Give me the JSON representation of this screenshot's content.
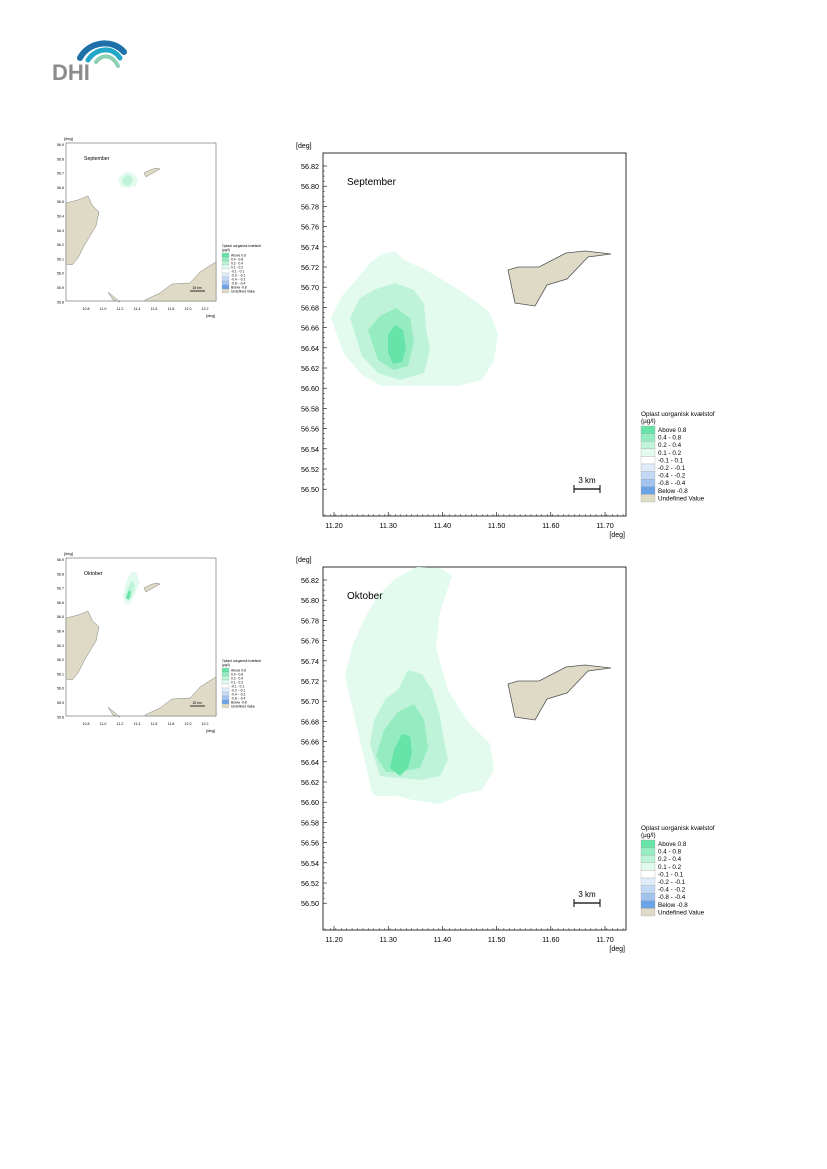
{
  "header": {
    "logo_text": "DHI"
  },
  "colors": {
    "land": "#dedac6",
    "land_stroke": "#555555",
    "frame": "#000000",
    "above": "#66e3a6",
    "c04_08": "#94ecc0",
    "c02_04": "#bff3d9",
    "c01_02": "#e2fbee",
    "n01_01": "#ffffff",
    "n02_01": "#e0ecfb",
    "n04_02": "#c3d9f6",
    "n08_04": "#a3c4f0",
    "below": "#6aa3e8",
    "undefined": "#dedac6"
  },
  "legend": {
    "title": "Oplast uorganisk kvælstof",
    "unit": "(µg/l)",
    "items": [
      {
        "label": "Above  0.8",
        "color": "#66e3a6"
      },
      {
        "label": "0.4 -  0.8",
        "color": "#94ecc0"
      },
      {
        "label": "0.2 -  0.4",
        "color": "#bff3d9"
      },
      {
        "label": "0.1 -  0.2",
        "color": "#e2fbee"
      },
      {
        "label": "-0.1 -  0.1",
        "color": "#ffffff"
      },
      {
        "label": "-0.2 - -0.1",
        "color": "#e0ecfb"
      },
      {
        "label": "-0.4 - -0.2",
        "color": "#c3d9f6"
      },
      {
        "label": "-0.8 - -0.4",
        "color": "#a3c4f0"
      },
      {
        "label": "Below -0.8",
        "color": "#6aa3e8"
      },
      {
        "label": "Undefined Value",
        "color": "#dedac6"
      }
    ]
  },
  "axes": {
    "unit_label": "[deg]",
    "y_ticks": [
      "56.82",
      "56.80",
      "56.78",
      "56.76",
      "56.74",
      "56.72",
      "56.70",
      "56.68",
      "56.66",
      "56.64",
      "56.62",
      "56.60",
      "56.58",
      "56.56",
      "56.54",
      "56.52",
      "56.50"
    ],
    "x_ticks": [
      "11.20",
      "11.30",
      "11.40",
      "11.50",
      "11.60",
      "11.70"
    ],
    "x_range": [
      11.18,
      11.72
    ],
    "y_range": [
      56.49,
      56.83
    ],
    "scalebar_label": "3 km"
  },
  "overview": {
    "y_ticks": [
      "56.9",
      "56.8",
      "56.7",
      "56.6",
      "56.5",
      "56.4",
      "56.3",
      "56.2",
      "56.1",
      "56.0",
      "55.9",
      "55.8"
    ],
    "x_ticks": [
      "10.8",
      "11.0",
      "11.2",
      "11.4",
      "11.6",
      "11.8",
      "12.0",
      "12.2"
    ],
    "legend_items": [
      "Above 0.8",
      "0.4 - 0.8",
      "0.2 - 0.4",
      "0.1 - 0.2",
      "-0.1 - 0.1",
      "-0.2 - -0.1",
      "-0.4 - -0.2",
      "-0.8 - -0.4",
      "Below -0.8",
      "Undefined Value"
    ],
    "scalebar_label": "15 km"
  },
  "panels": [
    {
      "id": "september",
      "title": "September"
    },
    {
      "id": "oktober",
      "title": "Oktober"
    }
  ]
}
